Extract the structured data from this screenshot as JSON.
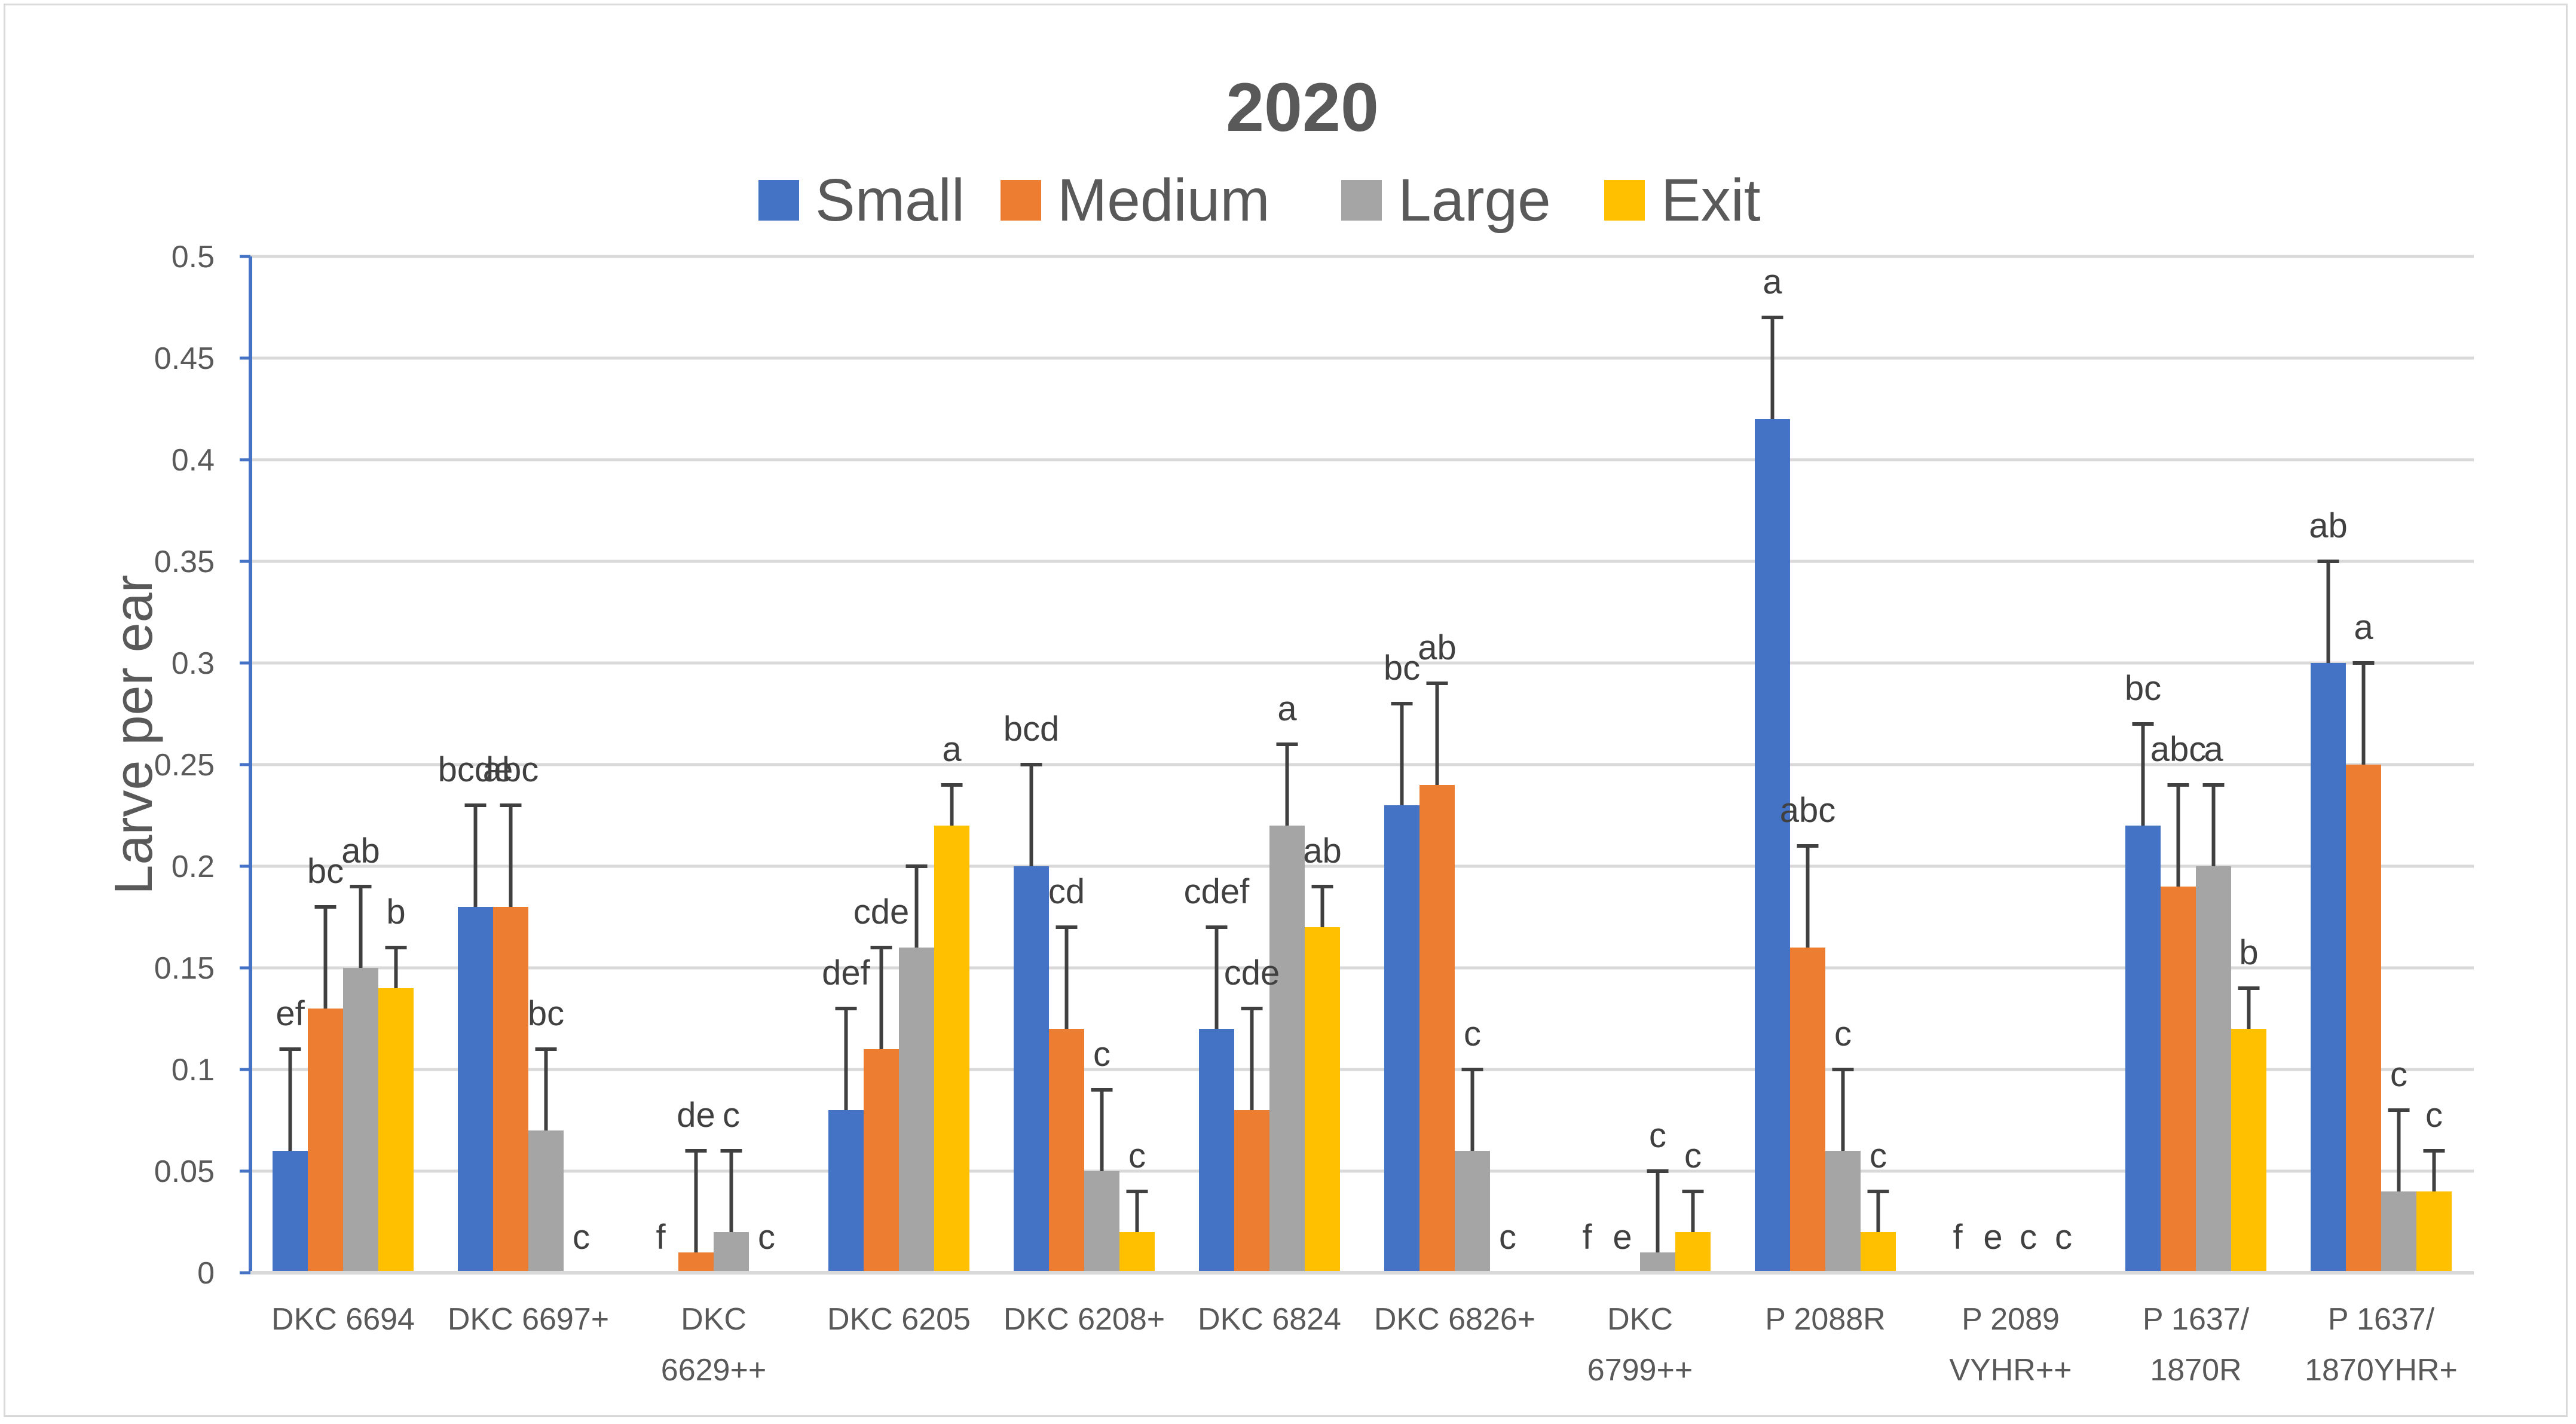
{
  "chart_data": {
    "type": "bar",
    "title": "2020",
    "xlabel": "",
    "ylabel": "Larve per ear",
    "ylim": [
      0,
      0.5
    ],
    "yticks": [
      "0",
      "0.05",
      "0.1",
      "0.15",
      "0.2",
      "0.25",
      "0.3",
      "0.35",
      "0.4",
      "0.45",
      "0.5"
    ],
    "grid": true,
    "legend_position": "top",
    "categories": [
      [
        "DKC 6694"
      ],
      [
        "DKC 6697+"
      ],
      [
        "DKC",
        "6629++"
      ],
      [
        "DKC 6205"
      ],
      [
        "DKC 6208+"
      ],
      [
        "DKC 6824"
      ],
      [
        "DKC 6826+"
      ],
      [
        "DKC",
        "6799++"
      ],
      [
        "P 2088R"
      ],
      [
        "P 2089",
        "VYHR++"
      ],
      [
        "P 1637/",
        "1870R"
      ],
      [
        "P 1637/",
        "1870YHR+"
      ]
    ],
    "series": [
      {
        "name": "Small",
        "color": "#4472c4",
        "values": [
          0.06,
          0.18,
          0,
          0.08,
          0.2,
          0.12,
          0.23,
          0,
          0.42,
          0,
          0.22,
          0.3
        ],
        "errors": [
          0.05,
          0.05,
          0,
          0.05,
          0.05,
          0.05,
          0.05,
          0,
          0.05,
          0,
          0.05,
          0.05
        ],
        "letters": [
          "ef",
          "bcde",
          "f",
          "def",
          "bcd",
          "cdef",
          "bc",
          "f",
          "a",
          "f",
          "bc",
          "ab"
        ]
      },
      {
        "name": "Medium",
        "color": "#ed7d31",
        "values": [
          0.13,
          0.18,
          0.01,
          0.11,
          0.12,
          0.08,
          0.24,
          0,
          0.16,
          0,
          0.19,
          0.25
        ],
        "errors": [
          0.05,
          0.05,
          0.05,
          0.05,
          0.05,
          0.05,
          0.05,
          0,
          0.05,
          0,
          0.05,
          0.05
        ],
        "letters": [
          "bc",
          "abc",
          "de",
          "cde",
          "cd",
          "cde",
          "ab",
          "e",
          "abc",
          "e",
          "abc",
          "a"
        ]
      },
      {
        "name": "Large",
        "color": "#a5a5a5",
        "values": [
          0.15,
          0.07,
          0.02,
          0.16,
          0.05,
          0.22,
          0.06,
          0.01,
          0.06,
          0,
          0.2,
          0.04
        ],
        "errors": [
          0.04,
          0.04,
          0.04,
          0.04,
          0.04,
          0.04,
          0.04,
          0.04,
          0.04,
          0,
          0.04,
          0.04
        ],
        "letters": [
          "ab",
          "bc",
          "c",
          "",
          "c",
          "a",
          "c",
          "c",
          "c",
          "c",
          "a",
          "c"
        ]
      },
      {
        "name": "Exit",
        "color": "#ffc000",
        "values": [
          0.14,
          0,
          0,
          0.22,
          0.02,
          0.17,
          0,
          0.02,
          0.02,
          0,
          0.12,
          0.04
        ],
        "errors": [
          0.02,
          0,
          0,
          0.02,
          0.02,
          0.02,
          0,
          0.02,
          0.02,
          0,
          0.02,
          0.02
        ],
        "letters": [
          "b",
          "c",
          "c",
          "a",
          "c",
          "ab",
          "c",
          "c",
          "c",
          "c",
          "b",
          "c"
        ]
      }
    ]
  }
}
